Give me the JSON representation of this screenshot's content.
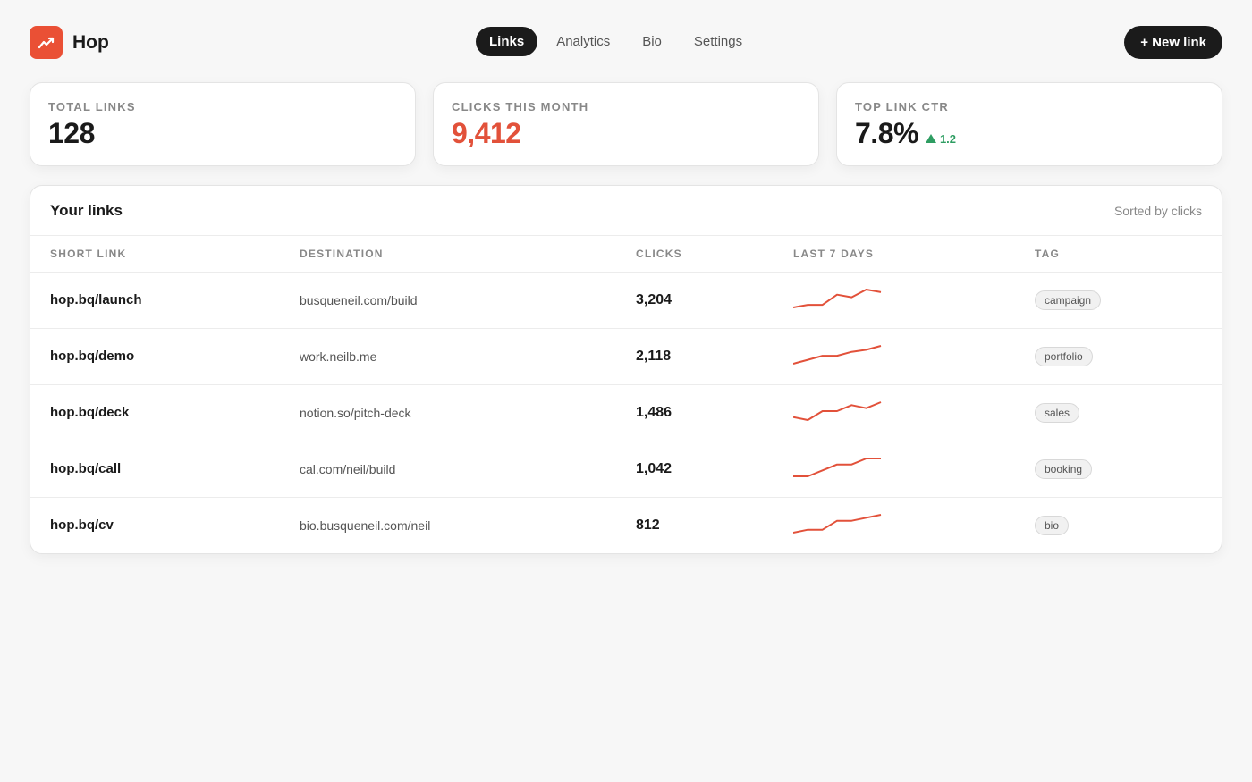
{
  "app": {
    "name": "Hop",
    "logo_icon": "trend-up-icon",
    "accent": "#ea5035"
  },
  "nav": {
    "items": [
      {
        "label": "Links",
        "active": true
      },
      {
        "label": "Analytics",
        "active": false
      },
      {
        "label": "Bio",
        "active": false
      },
      {
        "label": "Settings",
        "active": false
      }
    ]
  },
  "header": {
    "new_link_label": "+ New link"
  },
  "stats": {
    "total_links": {
      "label": "TOTAL LINKS",
      "value": "128"
    },
    "clicks_month": {
      "label": "CLICKS THIS MONTH",
      "value": "9,412"
    },
    "top_ctr": {
      "label": "TOP LINK CTR",
      "value": "7.8%",
      "delta": "1.2",
      "delta_color": "#2e9d62"
    }
  },
  "links": {
    "title": "Your links",
    "sort_note": "Sorted by clicks",
    "columns": [
      "SHORT LINK",
      "DESTINATION",
      "CLICKS",
      "LAST 7 DAYS",
      "TAG"
    ],
    "sparkline_color": "#e2513a",
    "rows": [
      {
        "short": "hop.bq/launch",
        "dest": "busqueneil.com/build",
        "clicks": "3,204",
        "tag": "campaign",
        "spark": [
          2,
          3,
          3,
          7,
          6,
          9,
          8
        ]
      },
      {
        "short": "hop.bq/demo",
        "dest": "work.neilb.me",
        "clicks": "2,118",
        "tag": "portfolio",
        "spark": [
          1,
          3,
          5,
          5,
          7,
          8,
          10
        ]
      },
      {
        "short": "hop.bq/deck",
        "dest": "notion.so/pitch-deck",
        "clicks": "1,486",
        "tag": "sales",
        "spark": [
          4,
          3,
          6,
          6,
          8,
          7,
          9
        ]
      },
      {
        "short": "hop.bq/call",
        "dest": "cal.com/neil/build",
        "clicks": "1,042",
        "tag": "booking",
        "spark": [
          2,
          2,
          4,
          6,
          6,
          8,
          8
        ]
      },
      {
        "short": "hop.bq/cv",
        "dest": "bio.busqueneil.com/neil",
        "clicks": "812",
        "tag": "bio",
        "spark": [
          3,
          4,
          4,
          7,
          7,
          8,
          9
        ]
      }
    ]
  }
}
